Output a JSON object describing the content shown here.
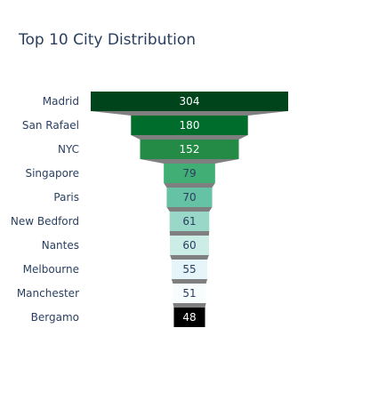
{
  "chart_data": {
    "type": "funnel",
    "title": "Top 10 City Distribution",
    "categories": [
      "Madrid",
      "San Rafael",
      "NYC",
      "Singapore",
      "Paris",
      "New Bedford",
      "Nantes",
      "Melbourne",
      "Manchester",
      "Bergamo"
    ],
    "values": [
      304,
      180,
      152,
      79,
      70,
      61,
      60,
      55,
      51,
      48
    ],
    "colors": [
      "#00441b",
      "#006d2c",
      "#238b45",
      "#41ae76",
      "#66c2a4",
      "#99d8c9",
      "#ccece6",
      "#e5f5f9",
      "#f7fcfd",
      "#000000"
    ],
    "label_colors": [
      "#ffffff",
      "#ffffff",
      "#ffffff",
      "#2a3f5f",
      "#2a3f5f",
      "#2a3f5f",
      "#2a3f5f",
      "#2a3f5f",
      "#2a3f5f",
      "#ffffff"
    ],
    "connector_color": "#7f7f7f"
  }
}
